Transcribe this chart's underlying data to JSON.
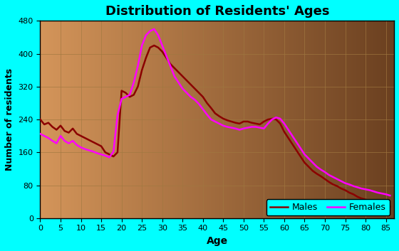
{
  "title": "Distribution of Residents' Ages",
  "xlabel": "Age",
  "ylabel": "Number of residents",
  "xlim": [
    0,
    87
  ],
  "ylim": [
    0,
    480
  ],
  "yticks": [
    0,
    80,
    160,
    240,
    320,
    400,
    480
  ],
  "xticks": [
    0,
    5,
    10,
    15,
    20,
    25,
    30,
    35,
    40,
    45,
    50,
    55,
    60,
    65,
    70,
    75,
    80,
    85
  ],
  "background_outer": "#00FFFF",
  "background_inner_left": "#D4955A",
  "background_inner_right": "#6B4020",
  "grid_color": "#A07840",
  "males_color": "#8B0000",
  "females_color": "#FF00FF",
  "legend_bg": "#00FFFF",
  "ages": [
    0,
    1,
    2,
    3,
    4,
    5,
    6,
    7,
    8,
    9,
    10,
    11,
    12,
    13,
    14,
    15,
    16,
    17,
    18,
    19,
    20,
    21,
    22,
    23,
    24,
    25,
    26,
    27,
    28,
    29,
    30,
    31,
    32,
    33,
    34,
    35,
    36,
    37,
    38,
    39,
    40,
    41,
    42,
    43,
    44,
    45,
    46,
    47,
    48,
    49,
    50,
    51,
    52,
    53,
    54,
    55,
    56,
    57,
    58,
    59,
    60,
    61,
    62,
    63,
    64,
    65,
    66,
    67,
    68,
    69,
    70,
    71,
    72,
    73,
    74,
    75,
    76,
    77,
    78,
    79,
    80,
    81,
    82,
    83,
    84,
    85,
    86
  ],
  "males": [
    240,
    228,
    232,
    222,
    215,
    225,
    212,
    208,
    218,
    205,
    200,
    195,
    190,
    185,
    180,
    175,
    160,
    155,
    150,
    160,
    310,
    305,
    295,
    300,
    320,
    360,
    390,
    415,
    420,
    415,
    405,
    390,
    375,
    365,
    355,
    345,
    335,
    325,
    315,
    305,
    295,
    280,
    268,
    255,
    248,
    242,
    238,
    235,
    232,
    230,
    235,
    235,
    232,
    230,
    228,
    235,
    240,
    242,
    240,
    230,
    210,
    195,
    180,
    165,
    150,
    135,
    125,
    115,
    108,
    102,
    95,
    88,
    82,
    78,
    72,
    68,
    62,
    58,
    52,
    48,
    45,
    42,
    40,
    38,
    35,
    30,
    28
  ],
  "females": [
    205,
    200,
    195,
    188,
    182,
    200,
    188,
    182,
    188,
    178,
    172,
    168,
    165,
    162,
    158,
    155,
    152,
    148,
    162,
    250,
    290,
    295,
    300,
    330,
    370,
    420,
    445,
    455,
    460,
    445,
    420,
    395,
    370,
    345,
    330,
    315,
    305,
    295,
    288,
    278,
    265,
    252,
    240,
    235,
    230,
    225,
    222,
    220,
    218,
    215,
    218,
    220,
    222,
    222,
    220,
    218,
    230,
    240,
    245,
    242,
    230,
    215,
    200,
    185,
    170,
    155,
    145,
    135,
    125,
    118,
    112,
    105,
    100,
    95,
    90,
    85,
    82,
    78,
    75,
    72,
    70,
    68,
    65,
    62,
    60,
    58,
    55
  ]
}
